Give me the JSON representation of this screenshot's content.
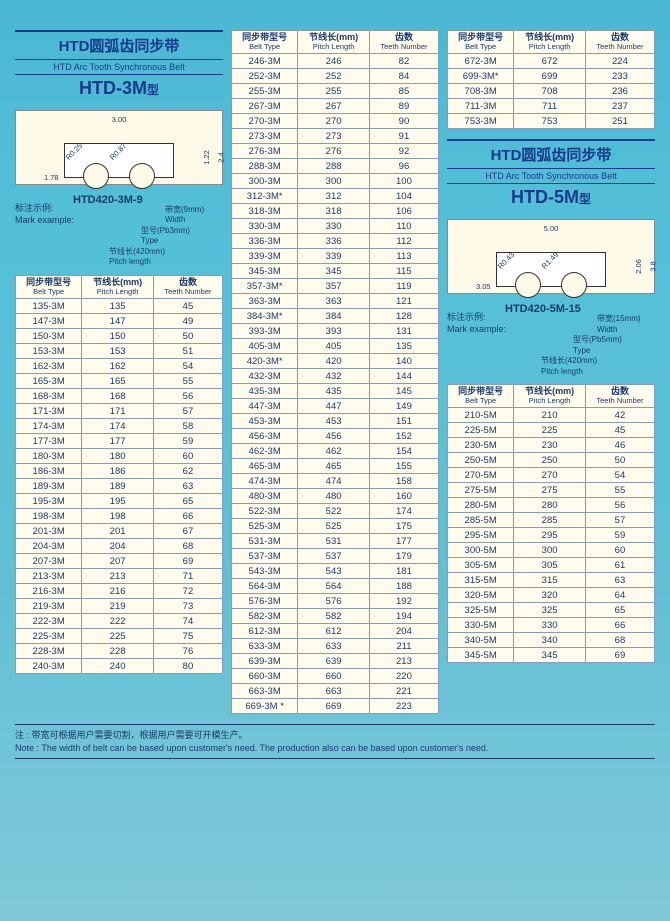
{
  "headers": {
    "belt_type_cn": "同步带型号",
    "belt_type_en": "Belt Type",
    "pitch_length_cn": "节线长(mm)",
    "pitch_length_en": "Pitch Length",
    "teeth_number_cn": "齿数",
    "teeth_number_en": "Teeth Number"
  },
  "section3m": {
    "title_cn": "HTD圆弧齿同步带",
    "title_en": "HTD Arc Tooth Synchronous Belt",
    "model": "HTD-3M",
    "model_suffix": "型",
    "diagram": {
      "pitch": "3.00",
      "d1": "1.78",
      "r1": "R0.25",
      "r2": "R0.87",
      "h1": "1.22",
      "h2": "2.4"
    },
    "mark": {
      "code": "HTD420-3M-9",
      "label_cn": "标注示例:",
      "label_en": "Mark example:",
      "width_cn": "带宽",
      "width_val": "(9mm)",
      "width_en": "Width",
      "type_cn": "型号",
      "type_val": "(Pb3mm)",
      "type_en": "Type",
      "pitch_cn": "节线长",
      "pitch_val": "(420mm)",
      "pitch_en": "Pitch length"
    }
  },
  "section5m": {
    "title_cn": "HTD圆弧齿同步带",
    "title_en": "HTD Arc Tooth Synchronous Belt",
    "model": "HTD-5M",
    "model_suffix": "型",
    "diagram": {
      "pitch": "5.00",
      "d1": "3.05",
      "r1": "R0.43",
      "r2": "R1.49",
      "h1": "2.06",
      "h2": "3.8"
    },
    "mark": {
      "code": "HTD420-5M-15",
      "label_cn": "标注示例:",
      "label_en": "Mark example:",
      "width_cn": "带宽",
      "width_val": "(15mm)",
      "width_en": "Width",
      "type_cn": "型号",
      "type_val": "(Pb5mm)",
      "type_en": "Type",
      "pitch_cn": "节线长",
      "pitch_val": "(420mm)",
      "pitch_en": "Pitch length"
    }
  },
  "table3m_a": [
    [
      "135-3M",
      "135",
      "45"
    ],
    [
      "147-3M",
      "147",
      "49"
    ],
    [
      "150-3M",
      "150",
      "50"
    ],
    [
      "153-3M",
      "153",
      "51"
    ],
    [
      "162-3M",
      "162",
      "54"
    ],
    [
      "165-3M",
      "165",
      "55"
    ],
    [
      "168-3M",
      "168",
      "56"
    ],
    [
      "171-3M",
      "171",
      "57"
    ],
    [
      "174-3M",
      "174",
      "58"
    ],
    [
      "177-3M",
      "177",
      "59"
    ],
    [
      "180-3M",
      "180",
      "60"
    ],
    [
      "186-3M",
      "186",
      "62"
    ],
    [
      "189-3M",
      "189",
      "63"
    ],
    [
      "195-3M",
      "195",
      "65"
    ],
    [
      "198-3M",
      "198",
      "66"
    ],
    [
      "201-3M",
      "201",
      "67"
    ],
    [
      "204-3M",
      "204",
      "68"
    ],
    [
      "207-3M",
      "207",
      "69"
    ],
    [
      "213-3M",
      "213",
      "71"
    ],
    [
      "216-3M",
      "216",
      "72"
    ],
    [
      "219-3M",
      "219",
      "73"
    ],
    [
      "222-3M",
      "222",
      "74"
    ],
    [
      "225-3M",
      "225",
      "75"
    ],
    [
      "228-3M",
      "228",
      "76"
    ],
    [
      "240-3M",
      "240",
      "80"
    ]
  ],
  "table3m_b": [
    [
      "246-3M",
      "246",
      "82"
    ],
    [
      "252-3M",
      "252",
      "84"
    ],
    [
      "255-3M",
      "255",
      "85"
    ],
    [
      "267-3M",
      "267",
      "89"
    ],
    [
      "270-3M",
      "270",
      "90"
    ],
    [
      "273-3M",
      "273",
      "91"
    ],
    [
      "276-3M",
      "276",
      "92"
    ],
    [
      "288-3M",
      "288",
      "96"
    ],
    [
      "300-3M",
      "300",
      "100"
    ],
    [
      "312-3M*",
      "312",
      "104"
    ],
    [
      "318-3M",
      "318",
      "106"
    ],
    [
      "330-3M",
      "330",
      "110"
    ],
    [
      "336-3M",
      "336",
      "112"
    ],
    [
      "339-3M",
      "339",
      "113"
    ],
    [
      "345-3M",
      "345",
      "115"
    ],
    [
      "357-3M*",
      "357",
      "119"
    ],
    [
      "363-3M",
      "363",
      "121"
    ],
    [
      "384-3M*",
      "384",
      "128"
    ],
    [
      "393-3M",
      "393",
      "131"
    ],
    [
      "405-3M",
      "405",
      "135"
    ],
    [
      "420-3M*",
      "420",
      "140"
    ],
    [
      "432-3M",
      "432",
      "144"
    ],
    [
      "435-3M",
      "435",
      "145"
    ],
    [
      "447-3M",
      "447",
      "149"
    ],
    [
      "453-3M",
      "453",
      "151"
    ],
    [
      "456-3M",
      "456",
      "152"
    ],
    [
      "462-3M",
      "462",
      "154"
    ],
    [
      "465-3M",
      "465",
      "155"
    ],
    [
      "474-3M",
      "474",
      "158"
    ],
    [
      "480-3M",
      "480",
      "160"
    ],
    [
      "522-3M",
      "522",
      "174"
    ],
    [
      "525-3M",
      "525",
      "175"
    ],
    [
      "531-3M",
      "531",
      "177"
    ],
    [
      "537-3M",
      "537",
      "179"
    ],
    [
      "543-3M",
      "543",
      "181"
    ],
    [
      "564-3M",
      "564",
      "188"
    ],
    [
      "576-3M",
      "576",
      "192"
    ],
    [
      "582-3M",
      "582",
      "194"
    ],
    [
      "612-3M",
      "612",
      "204"
    ],
    [
      "633-3M",
      "633",
      "211"
    ],
    [
      "639-3M",
      "639",
      "213"
    ],
    [
      "660-3M",
      "660",
      "220"
    ],
    [
      "663-3M",
      "663",
      "221"
    ],
    [
      "669-3M *",
      "669",
      "223"
    ]
  ],
  "table3m_c": [
    [
      "672-3M",
      "672",
      "224"
    ],
    [
      "699-3M*",
      "699",
      "233"
    ],
    [
      "708-3M",
      "708",
      "236"
    ],
    [
      "711-3M",
      "711",
      "237"
    ],
    [
      "753-3M",
      "753",
      "251"
    ]
  ],
  "table5m": [
    [
      "210-5M",
      "210",
      "42"
    ],
    [
      "225-5M",
      "225",
      "45"
    ],
    [
      "230-5M",
      "230",
      "46"
    ],
    [
      "250-5M",
      "250",
      "50"
    ],
    [
      "270-5M",
      "270",
      "54"
    ],
    [
      "275-5M",
      "275",
      "55"
    ],
    [
      "280-5M",
      "280",
      "56"
    ],
    [
      "285-5M",
      "285",
      "57"
    ],
    [
      "295-5M",
      "295",
      "59"
    ],
    [
      "300-5M",
      "300",
      "60"
    ],
    [
      "305-5M",
      "305",
      "61"
    ],
    [
      "315-5M",
      "315",
      "63"
    ],
    [
      "320-5M",
      "320",
      "64"
    ],
    [
      "325-5M",
      "325",
      "65"
    ],
    [
      "330-5M",
      "330",
      "66"
    ],
    [
      "340-5M",
      "340",
      "68"
    ],
    [
      "345-5M",
      "345",
      "69"
    ]
  ],
  "footnote": {
    "cn": "注 : 带宽可根据用户需要切割，根据用户需要可开模生产。",
    "en": "Note : The width of belt can be based upon customer's need. The production also can be based upon customer's need."
  }
}
